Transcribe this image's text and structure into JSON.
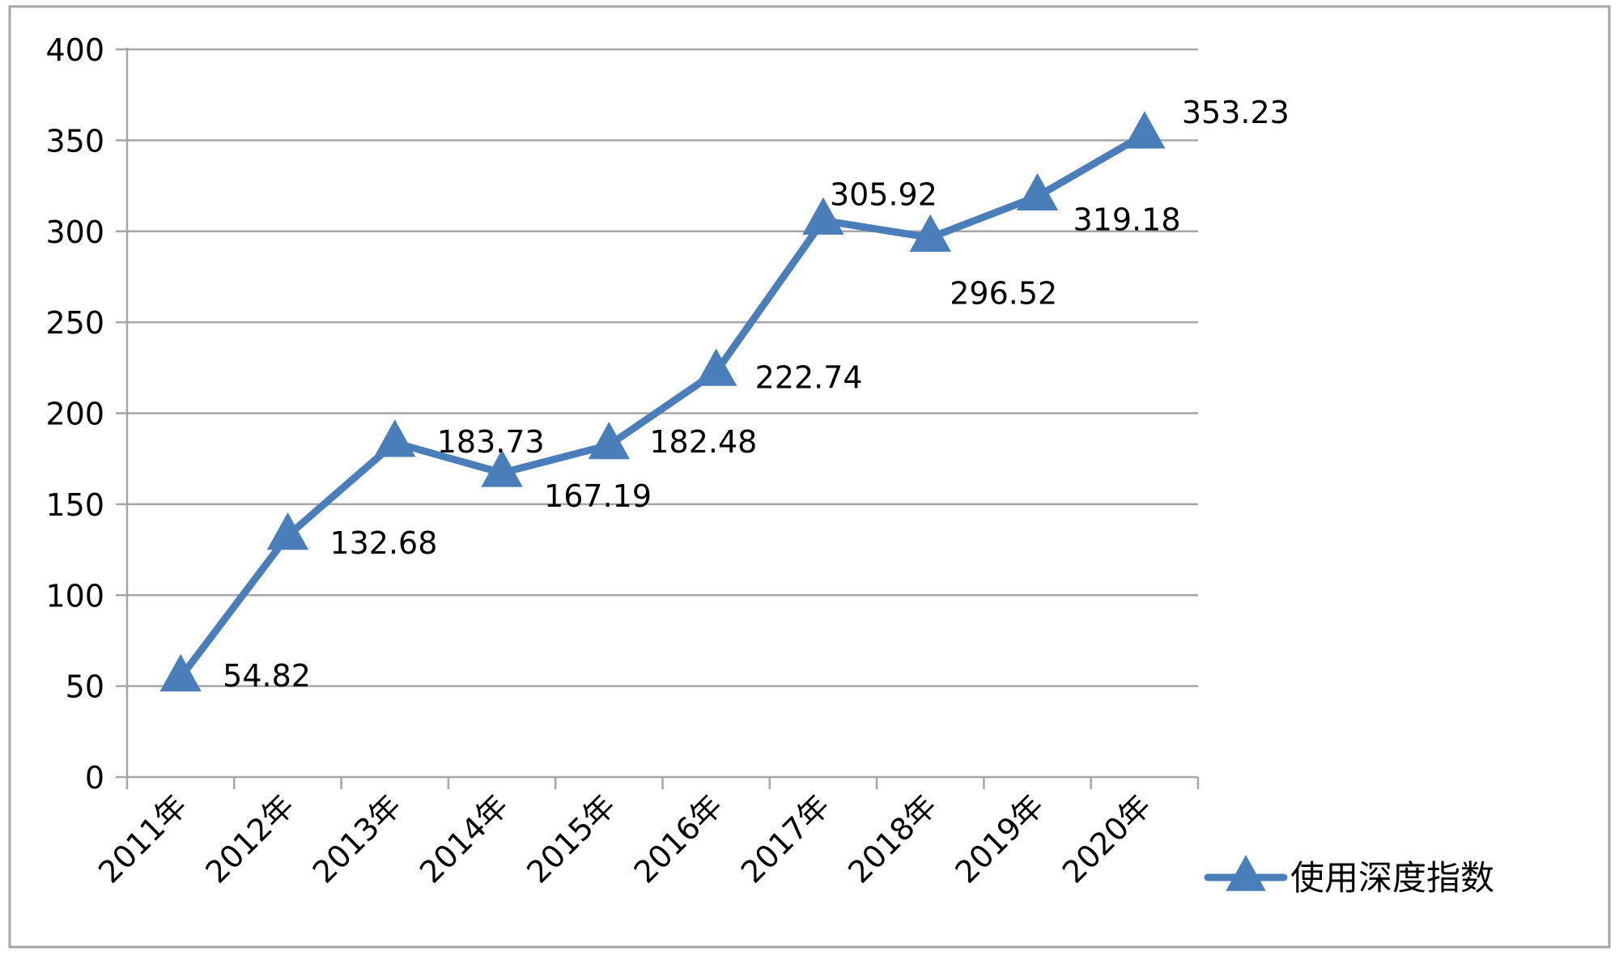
{
  "chart_data": {
    "type": "line",
    "categories": [
      "2011年",
      "2012年",
      "2013年",
      "2014年",
      "2015年",
      "2016年",
      "2017年",
      "2018年",
      "2019年",
      "2020年"
    ],
    "series": [
      {
        "name": "使用深度指数",
        "values": [
          54.82,
          132.68,
          183.73,
          167.19,
          182.48,
          222.74,
          305.92,
          296.52,
          319.18,
          353.23
        ],
        "labels": [
          "54.82",
          "132.68",
          "183.73",
          "167.19",
          "182.48",
          "222.74",
          "305.92",
          "296.52",
          "319.18",
          "353.23"
        ],
        "color": "#4a7ebb",
        "marker": "triangle"
      }
    ],
    "title": "",
    "xlabel": "",
    "ylabel": "",
    "ylim": [
      0,
      400
    ],
    "yticks": [
      "0",
      "50",
      "100",
      "150",
      "200",
      "250",
      "300",
      "350",
      "400"
    ],
    "grid": true,
    "legend_position": "right",
    "gridline_color": "#a6a6a6",
    "frame_color": "#a6a6a6"
  }
}
